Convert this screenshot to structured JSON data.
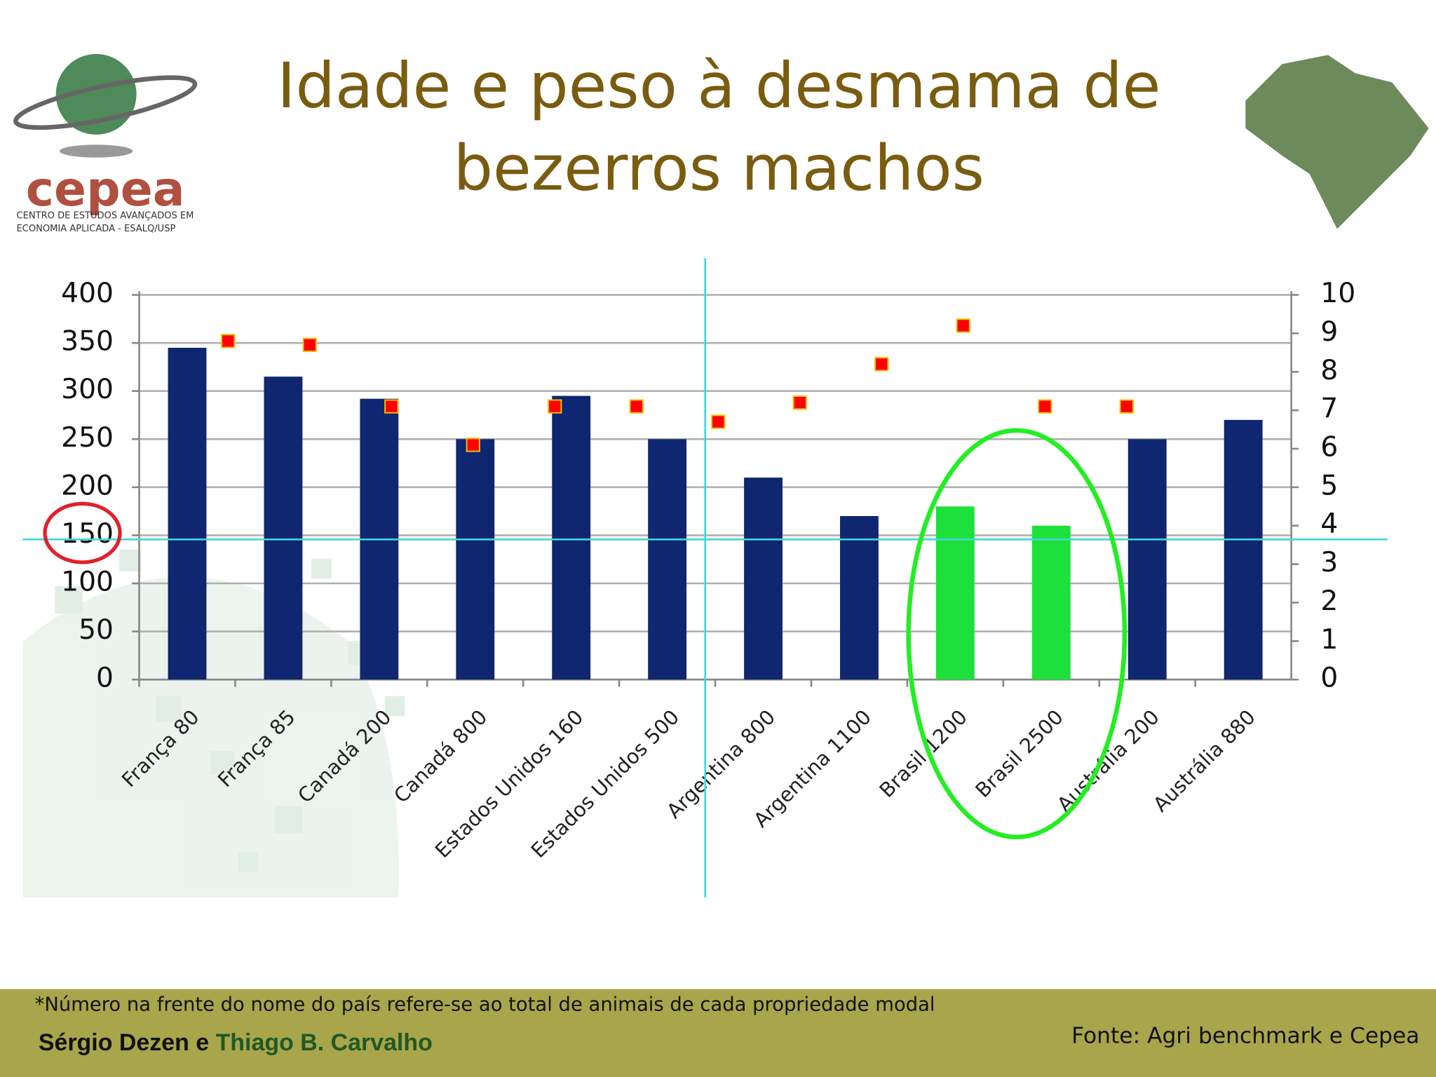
{
  "logo": {
    "name": "cepea",
    "line1": "CENTRO DE ESTUDOS AVANÇADOS EM",
    "line2": "ECONOMIA APLICADA - ESALQ/USP"
  },
  "chart_data": {
    "type": "bar",
    "title": "Idade e peso à desmama de bezerros machos",
    "categories": [
      "França 80",
      "França 85",
      "Canadá 200",
      "Canadá 800",
      "Estados Unidos 160",
      "Estados Unidos 500",
      "Argentina 800",
      "Argentina 1100",
      "Brasil 1200",
      "Brasil 2500",
      "Austrália 200",
      "Austrália 880"
    ],
    "series": [
      {
        "color": "#0f2670",
        "colors": [
          "#0f2670",
          "#0f2670",
          "#0f2670",
          "#0f2670",
          "#0f2670",
          "#0f2670",
          "#0f2670",
          "#0f2670",
          "#1ee03a",
          "#1ee03a",
          "#0f2670",
          "#0f2670"
        ],
        "values": [
          345,
          315,
          292,
          250,
          295,
          250,
          210,
          170,
          180,
          160,
          250,
          270
        ]
      },
      {
        "type": "scatter",
        "axis": "y2",
        "color": "#ff0000",
        "values": [
          8.8,
          8.7,
          7.1,
          6.1,
          7.1,
          7.1,
          6.7,
          7.2,
          8.2,
          9.2,
          7.1,
          7.1
        ]
      }
    ],
    "ylim": [
      0,
      400
    ],
    "yticks": [
      0,
      50,
      100,
      150,
      200,
      250,
      300,
      350,
      400
    ],
    "y2lim": [
      0,
      10
    ],
    "y2ticks": [
      0,
      1,
      2,
      3,
      4,
      5,
      6,
      7,
      8,
      9,
      10
    ],
    "grid": true
  },
  "footer": {
    "note": "*Número na frente do nome do país refere-se ao total de animais de cada propriedade modal",
    "author1": "Sérgio Dezen e",
    "author2": "Thiago B. Carvalho",
    "source": "Fonte: Agri benchmark e Cepea"
  }
}
